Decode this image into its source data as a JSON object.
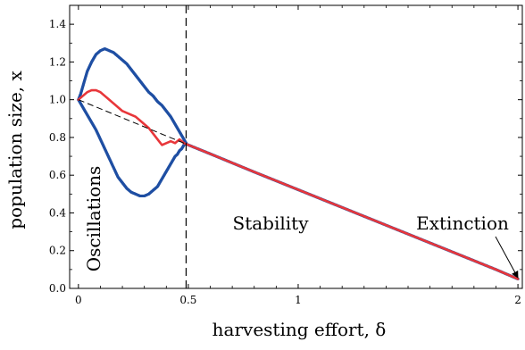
{
  "chart_data": {
    "type": "scatter",
    "title": "",
    "xlabel": "harvesting effort, δ",
    "ylabel": "population size, x",
    "xlim": [
      -0.04,
      2.02
    ],
    "ylim": [
      0.0,
      1.5
    ],
    "xticks": [
      0,
      0.5,
      1,
      2
    ],
    "xtick_labels": [
      "0",
      "0.5",
      "1",
      "2"
    ],
    "yticks": [
      0.0,
      0.2,
      0.4,
      0.6,
      0.8,
      1.0,
      1.2,
      1.4
    ],
    "ytick_labels": [
      "0.0",
      "0.2",
      "0.4",
      "0.6",
      "0.8",
      "1.0",
      "1.2",
      "1.4"
    ],
    "grid": false,
    "vline_x": 0.49,
    "annotations": [
      {
        "text": "Oscillations",
        "x": 0.1,
        "y": 0.5,
        "rotation": -90
      },
      {
        "text": "Stability",
        "x": 0.95,
        "y": 0.35
      },
      {
        "text": "Extinction",
        "x": 1.8,
        "y": 0.35
      }
    ],
    "colors": {
      "blue": "#1f4fa3",
      "red": "#e8363a",
      "black": "#000000"
    },
    "series": [
      {
        "color": "#1f4fa3",
        "style": "dots",
        "x": [
          0.0,
          0.01,
          0.02,
          0.04,
          0.06,
          0.08,
          0.1,
          0.12,
          0.14,
          0.16,
          0.18,
          0.2,
          0.22,
          0.24,
          0.26,
          0.28,
          0.3,
          0.32,
          0.34,
          0.36,
          0.38,
          0.4,
          0.42,
          0.44,
          0.46,
          0.47,
          0.48,
          0.49
        ],
        "y": [
          1.0,
          1.03,
          1.07,
          1.15,
          1.2,
          1.24,
          1.26,
          1.27,
          1.26,
          1.25,
          1.23,
          1.21,
          1.19,
          1.16,
          1.13,
          1.1,
          1.07,
          1.04,
          1.02,
          0.99,
          0.97,
          0.94,
          0.91,
          0.87,
          0.83,
          0.81,
          0.79,
          0.77
        ]
      },
      {
        "color": "#1f4fa3",
        "style": "dots",
        "x": [
          0.0,
          0.02,
          0.04,
          0.06,
          0.08,
          0.1,
          0.12,
          0.14,
          0.16,
          0.18,
          0.2,
          0.22,
          0.24,
          0.26,
          0.28,
          0.3,
          0.32,
          0.34,
          0.36,
          0.37,
          0.38,
          0.39,
          0.4,
          0.41,
          0.42,
          0.43,
          0.44,
          0.45,
          0.46,
          0.47,
          0.48,
          0.49
        ],
        "y": [
          1.0,
          0.96,
          0.92,
          0.88,
          0.84,
          0.79,
          0.74,
          0.69,
          0.64,
          0.59,
          0.56,
          0.53,
          0.51,
          0.5,
          0.49,
          0.49,
          0.5,
          0.52,
          0.54,
          0.56,
          0.58,
          0.6,
          0.62,
          0.64,
          0.66,
          0.68,
          0.7,
          0.71,
          0.73,
          0.74,
          0.76,
          0.77
        ]
      },
      {
        "color": "#1f4fa3",
        "style": "dots",
        "x": [
          0.49,
          0.6,
          0.8,
          1.0,
          1.2,
          1.4,
          1.6,
          1.8,
          1.9,
          2.0
        ],
        "y": [
          0.765,
          0.713,
          0.617,
          0.523,
          0.429,
          0.335,
          0.241,
          0.147,
          0.1,
          0.05
        ]
      },
      {
        "color": "#e8363a",
        "style": "line",
        "x": [
          0.0,
          0.01,
          0.02,
          0.04,
          0.06,
          0.08,
          0.1,
          0.12,
          0.14,
          0.16,
          0.18,
          0.2,
          0.22,
          0.24,
          0.26,
          0.28,
          0.3,
          0.32,
          0.34,
          0.36,
          0.38,
          0.4,
          0.42,
          0.44,
          0.46,
          0.47,
          0.48,
          0.49,
          0.6,
          0.8,
          1.0,
          1.2,
          1.4,
          1.6,
          1.8,
          1.9,
          2.0
        ],
        "y": [
          1.0,
          1.01,
          1.02,
          1.04,
          1.05,
          1.05,
          1.04,
          1.02,
          1.0,
          0.98,
          0.96,
          0.94,
          0.93,
          0.92,
          0.91,
          0.89,
          0.87,
          0.85,
          0.82,
          0.79,
          0.76,
          0.77,
          0.78,
          0.77,
          0.79,
          0.78,
          0.77,
          0.765,
          0.713,
          0.617,
          0.523,
          0.429,
          0.335,
          0.241,
          0.147,
          0.1,
          0.05
        ]
      },
      {
        "color": "#000000",
        "style": "dashed",
        "x": [
          0.0,
          0.49
        ],
        "y": [
          1.0,
          0.765
        ]
      }
    ]
  }
}
